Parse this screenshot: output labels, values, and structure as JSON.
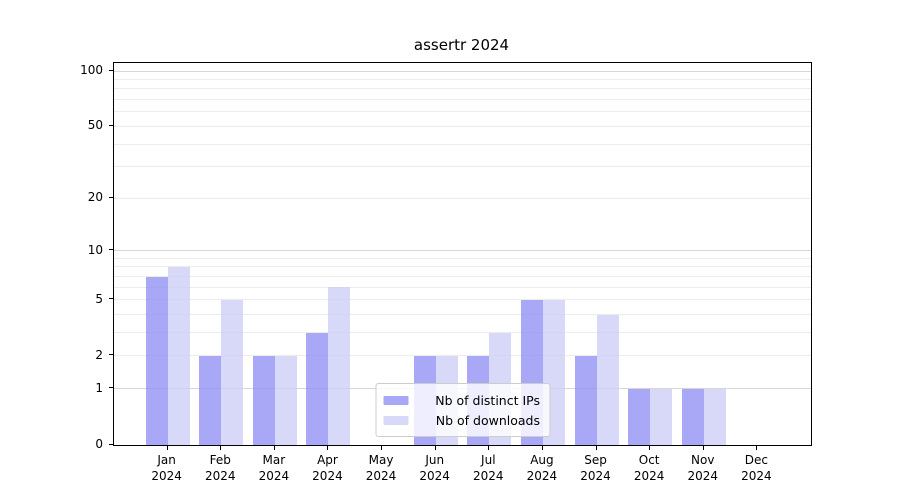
{
  "chart_data": {
    "type": "bar",
    "title": "assertr 2024",
    "categories": [
      "Jan",
      "Feb",
      "Mar",
      "Apr",
      "May",
      "Jun",
      "Jul",
      "Aug",
      "Sep",
      "Oct",
      "Nov",
      "Dec"
    ],
    "year_label": "2024",
    "series": [
      {
        "name": "Nb of distinct IPs",
        "color": "#a8a8f7",
        "bar_rgba": "rgba(146,146,245,0.8)",
        "values": [
          7,
          2,
          2,
          3,
          0,
          2,
          2,
          5,
          2,
          1,
          1,
          0
        ]
      },
      {
        "name": "Nb of downloads",
        "color": "#d8d8f9",
        "bar_rgba": "rgba(206,206,247,0.8)",
        "values": [
          8,
          5,
          2,
          6,
          0,
          2,
          3,
          5,
          4,
          1,
          1,
          0
        ]
      }
    ],
    "y_ticks": [
      0,
      1,
      2,
      5,
      10,
      20,
      50,
      100
    ],
    "y_scale": "log1p",
    "ylim": [
      0,
      110
    ],
    "xlabel": "",
    "ylabel": "",
    "legend_position": "lower center",
    "grid": {
      "minor_values": [
        2,
        3,
        4,
        5,
        6,
        7,
        8,
        9,
        20,
        30,
        40,
        50,
        60,
        70,
        80,
        90
      ],
      "major_values": [
        1,
        10,
        100
      ],
      "minor_color": "#ececec",
      "major_color": "#d6d6d6"
    },
    "axis_color": "#000000",
    "background": "#ffffff"
  }
}
